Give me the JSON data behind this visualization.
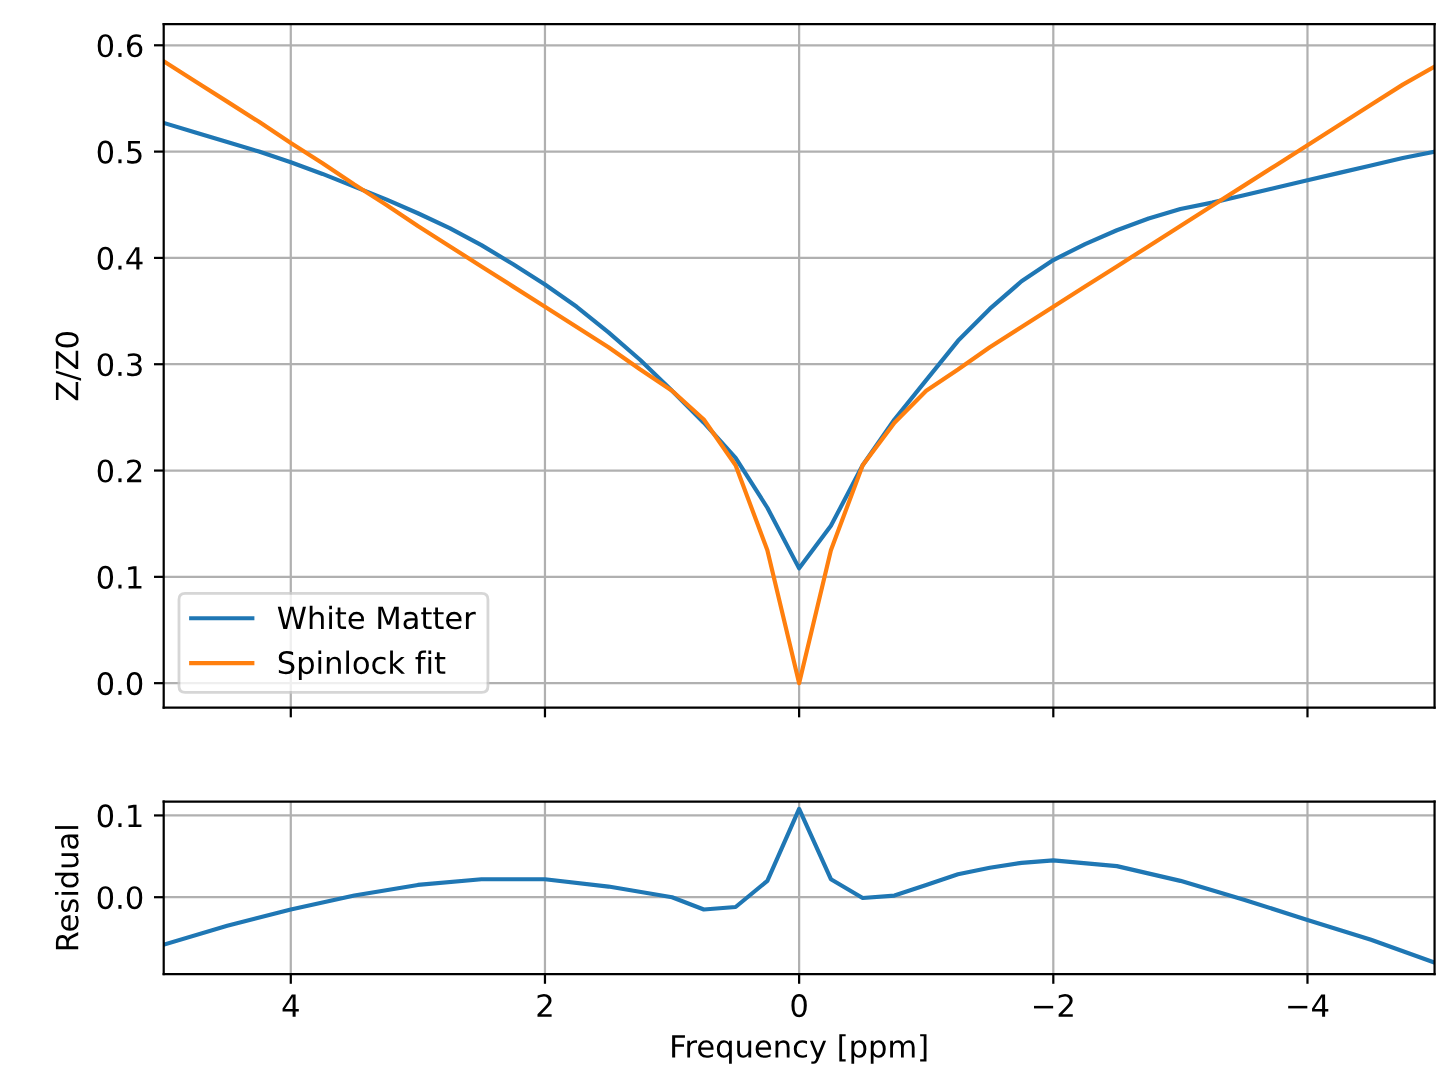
{
  "chart_data": [
    {
      "type": "line",
      "ylabel": "Z/Z0",
      "xlim": [
        5,
        -5
      ],
      "ylim": [
        -0.023,
        0.62
      ],
      "xticks": [
        {
          "value": 4,
          "label": null
        },
        {
          "value": 2,
          "label": null
        },
        {
          "value": 0,
          "label": null
        },
        {
          "value": -2,
          "label": null
        },
        {
          "value": -4,
          "label": null
        }
      ],
      "yticks": [
        {
          "value": 0.0,
          "label": "0.0"
        },
        {
          "value": 0.1,
          "label": "0.1"
        },
        {
          "value": 0.2,
          "label": "0.2"
        },
        {
          "value": 0.3,
          "label": "0.3"
        },
        {
          "value": 0.4,
          "label": "0.4"
        },
        {
          "value": 0.5,
          "label": "0.5"
        },
        {
          "value": 0.6,
          "label": "0.6"
        }
      ],
      "tick_labels": "y",
      "grid": true,
      "legend": "bottom left",
      "x": [
        5,
        4.75,
        4.5,
        4.25,
        4,
        3.75,
        3.5,
        3.25,
        3,
        2.75,
        2.5,
        2.25,
        2,
        1.75,
        1.5,
        1.25,
        1,
        0.75,
        0.5,
        0.25,
        0,
        -0.25,
        -0.5,
        -0.75,
        -1,
        -1.25,
        -1.5,
        -1.75,
        -2,
        -2.25,
        -2.5,
        -2.75,
        -3,
        -3.25,
        -3.5,
        -3.75,
        -4,
        -4.25,
        -4.5,
        -4.75,
        -5
      ],
      "series": [
        {
          "name": "White Matter",
          "color": "#1f77b4",
          "values": [
            0.527,
            0.518,
            0.509,
            0.5,
            0.49,
            0.479,
            0.467,
            0.455,
            0.442,
            0.428,
            0.412,
            0.394,
            0.375,
            0.354,
            0.33,
            0.304,
            0.275,
            0.245,
            0.212,
            0.165,
            0.108,
            0.148,
            0.205,
            0.248,
            0.285,
            0.322,
            0.352,
            0.378,
            0.398,
            0.413,
            0.426,
            0.437,
            0.446,
            0.452,
            0.459,
            0.466,
            0.473,
            0.48,
            0.487,
            0.494,
            0.5
          ]
        },
        {
          "name": "Spinlock fit",
          "color": "#ff7f0e",
          "values": [
            0.585,
            0.566,
            0.547,
            0.528,
            0.508,
            0.489,
            0.469,
            0.45,
            0.43,
            0.411,
            0.392,
            0.373,
            0.354,
            0.335,
            0.316,
            0.295,
            0.275,
            0.248,
            0.205,
            0.125,
            0.0,
            0.125,
            0.205,
            0.245,
            0.275,
            0.295,
            0.316,
            0.335,
            0.354,
            0.373,
            0.392,
            0.411,
            0.43,
            0.449,
            0.468,
            0.487,
            0.506,
            0.525,
            0.544,
            0.563,
            0.58
          ]
        }
      ]
    },
    {
      "type": "line",
      "xlabel": "Frequency [ppm]",
      "ylabel": "Residual",
      "xlim": [
        5,
        -5
      ],
      "ylim": [
        -0.094,
        0.117
      ],
      "xticks": [
        4,
        2,
        0,
        {
          "value": -2,
          "label": "−2"
        },
        {
          "value": -4,
          "label": "−4"
        }
      ],
      "yticks": [
        {
          "value": 0.0,
          "label": "0.0"
        },
        {
          "value": 0.1,
          "label": "0.1"
        }
      ],
      "grid": true,
      "x": [
        5,
        4.5,
        4,
        3.5,
        3,
        2.5,
        2,
        1.5,
        1,
        0.75,
        0.5,
        0.25,
        0,
        -0.25,
        -0.5,
        -0.75,
        -1,
        -1.25,
        -1.5,
        -1.75,
        -2,
        -2.5,
        -3,
        -3.5,
        -4,
        -4.5,
        -5
      ],
      "series": [
        {
          "color": "#1f77b4",
          "values": [
            -0.058,
            -0.035,
            -0.015,
            0.002,
            0.015,
            0.022,
            0.022,
            0.013,
            0.0,
            -0.015,
            -0.012,
            0.02,
            0.108,
            0.022,
            -0.001,
            0.002,
            0.015,
            0.028,
            0.036,
            0.042,
            0.045,
            0.038,
            0.02,
            -0.003,
            -0.028,
            -0.052,
            -0.08
          ]
        }
      ]
    }
  ]
}
